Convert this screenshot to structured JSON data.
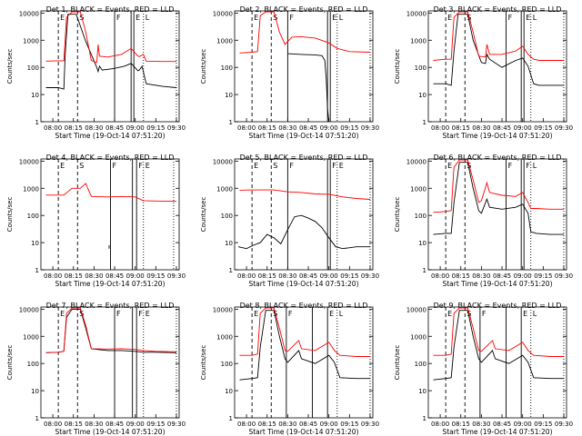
{
  "figure": {
    "ylabel": "Counts/sec",
    "xlabel": "Start Time (19-Oct-14 07:51:20)",
    "x_ticks": [
      "08:00",
      "08:15",
      "08:30",
      "08:45",
      "09:00",
      "09:15",
      "09:30"
    ],
    "y_ticks": [
      "1",
      "10",
      "100",
      "1000",
      "10000"
    ]
  },
  "chart_data": [
    {
      "type": "line",
      "title": "Det 1, BLACK = Events, RED = LLD",
      "xlim": [
        "07:51:20",
        "09:32"
      ],
      "ylim": [
        1,
        12000
      ],
      "yscale": "log",
      "series": [
        {
          "name": "Events",
          "color": "#000000",
          "x": [
            "07:55",
            "08:04",
            "08:08",
            "08:09",
            "08:11",
            "08:17",
            "08:24",
            "08:32",
            "08:33",
            "08:34",
            "08:36",
            "08:44",
            "08:52",
            "08:57",
            "09:02",
            "09:03",
            "09:05",
            "09:08",
            "09:20",
            "09:30"
          ],
          "y": [
            18,
            18,
            16,
            300,
            9000,
            9000,
            900,
            100,
            70,
            110,
            80,
            90,
            110,
            140,
            75,
            80,
            110,
            25,
            20,
            18
          ]
        },
        {
          "name": "LLD",
          "color": "#ff0000",
          "x": [
            "07:55",
            "08:04",
            "08:08",
            "08:10",
            "08:14",
            "08:20",
            "08:24",
            "08:28",
            "08:32",
            "08:33",
            "08:34",
            "08:40",
            "08:50",
            "08:57",
            "09:02",
            "09:03",
            "09:06",
            "09:08",
            "09:20",
            "09:30"
          ],
          "y": [
            170,
            175,
            175,
            7000,
            11000,
            11000,
            2000,
            180,
            150,
            700,
            260,
            240,
            300,
            500,
            260,
            250,
            300,
            170,
            165,
            165
          ]
        }
      ],
      "lines": {
        "dashed": [
          "08:04",
          "08:18"
        ],
        "solid": [
          "08:45",
          "08:57",
          "08:59"
        ],
        "dotted": [
          "09:06",
          "09:30"
        ]
      },
      "flags": [
        "E",
        "S",
        "F",
        "E",
        "L"
      ]
    },
    {
      "type": "line",
      "title": "Det 2, BLACK = Events, RED = LLD",
      "xlim": [
        "07:51:20",
        "09:32"
      ],
      "ylim": [
        1,
        12000
      ],
      "yscale": "log",
      "series": [
        {
          "name": "Events",
          "color": "#000000",
          "x": [
            "08:30",
            "08:40",
            "08:50",
            "08:55",
            "08:57",
            "08:58",
            "08:59",
            "09:00"
          ],
          "y": [
            320,
            300,
            290,
            270,
            180,
            40,
            3,
            1
          ]
        },
        {
          "name": "LLD",
          "color": "#ff0000",
          "x": [
            "07:55",
            "08:04",
            "08:08",
            "08:10",
            "08:14",
            "08:20",
            "08:24",
            "08:28",
            "08:33",
            "08:40",
            "08:50",
            "09:00",
            "09:06",
            "09:15",
            "09:30"
          ],
          "y": [
            340,
            360,
            380,
            8000,
            11000,
            11000,
            2000,
            700,
            1300,
            1350,
            1200,
            800,
            500,
            380,
            360
          ]
        }
      ],
      "lines": {
        "dashed": [
          "08:04",
          "08:18"
        ],
        "solid": [
          "08:30",
          "08:59",
          "09:01"
        ],
        "dotted": [
          "09:06",
          "09:30"
        ]
      },
      "flags": [
        "E",
        "S",
        "F",
        "E",
        "L"
      ]
    },
    {
      "type": "line",
      "title": "Det 3, BLACK = Events, RED = LLD",
      "xlim": [
        "07:51:20",
        "09:32"
      ],
      "ylim": [
        1,
        12000
      ],
      "yscale": "log",
      "series": [
        {
          "name": "Events",
          "color": "#000000",
          "x": [
            "07:55",
            "08:04",
            "08:08",
            "08:10",
            "08:13",
            "08:20",
            "08:24",
            "08:30",
            "08:33",
            "08:34",
            "08:36",
            "08:45",
            "08:55",
            "09:00",
            "09:04",
            "09:08",
            "09:12",
            "09:20",
            "09:30"
          ],
          "y": [
            25,
            25,
            22,
            400,
            9000,
            9000,
            1000,
            150,
            140,
            300,
            200,
            100,
            180,
            220,
            110,
            25,
            22,
            22,
            22
          ]
        },
        {
          "name": "LLD",
          "color": "#ff0000",
          "x": [
            "07:55",
            "08:04",
            "08:08",
            "08:10",
            "08:14",
            "08:20",
            "08:24",
            "08:28",
            "08:33",
            "08:34",
            "08:36",
            "08:45",
            "08:55",
            "09:00",
            "09:04",
            "09:08",
            "09:12",
            "09:20",
            "09:30"
          ],
          "y": [
            180,
            200,
            200,
            7000,
            11000,
            11000,
            2000,
            260,
            240,
            700,
            300,
            300,
            400,
            600,
            300,
            200,
            180,
            180,
            180
          ]
        }
      ],
      "lines": {
        "dashed": [
          "08:04",
          "08:18"
        ],
        "solid": [
          "08:48",
          "08:59",
          "09:01"
        ],
        "dotted": [
          "09:06",
          "09:30"
        ]
      },
      "flags": [
        "E",
        "S",
        "F",
        "E",
        "L"
      ]
    },
    {
      "type": "line",
      "title": "Det 4, BLACK = Events, RED = LLD",
      "xlim": [
        "07:51:20",
        "09:32"
      ],
      "ylim": [
        1,
        12000
      ],
      "yscale": "log",
      "series": [
        {
          "name": "Events",
          "color": "#000000",
          "x": [
            "08:41",
            "08:41"
          ],
          "y": [
            8,
            6
          ]
        },
        {
          "name": "LLD",
          "color": "#ff0000",
          "x": [
            "07:55",
            "08:04",
            "08:08",
            "08:14",
            "08:20",
            "08:24",
            "08:28",
            "08:40",
            "08:50",
            "09:00",
            "09:06",
            "09:15",
            "09:30"
          ],
          "y": [
            560,
            560,
            560,
            1000,
            1000,
            1500,
            500,
            480,
            500,
            480,
            350,
            340,
            330
          ]
        }
      ],
      "lines": {
        "dashed": [
          "08:04",
          "08:18"
        ],
        "solid": [
          "08:42",
          "08:58",
          "09:01"
        ],
        "dotted": [
          "09:06",
          "09:28"
        ]
      },
      "flags": [
        "E",
        "S",
        "F",
        "F",
        "E"
      ]
    },
    {
      "type": "line",
      "title": "Det 5, BLACK = Events, RED = LLD",
      "xlim": [
        "07:51:20",
        "09:32"
      ],
      "ylim": [
        1,
        12000
      ],
      "yscale": "log",
      "series": [
        {
          "name": "Events",
          "color": "#000000",
          "x": [
            "07:54",
            "08:00",
            "08:05",
            "08:10",
            "08:15",
            "08:20",
            "08:25",
            "08:30",
            "08:35",
            "08:40",
            "08:45",
            "08:50",
            "08:55",
            "09:00",
            "09:05",
            "09:10",
            "09:20",
            "09:30"
          ],
          "y": [
            7,
            6,
            8,
            10,
            20,
            15,
            9,
            30,
            90,
            100,
            80,
            60,
            35,
            15,
            7,
            6,
            7,
            7
          ]
        },
        {
          "name": "LLD",
          "color": "#ff0000",
          "x": [
            "07:55",
            "08:00",
            "08:10",
            "08:20",
            "08:30",
            "08:40",
            "08:50",
            "09:00",
            "09:10",
            "09:20",
            "09:30"
          ],
          "y": [
            850,
            860,
            870,
            870,
            740,
            700,
            620,
            600,
            480,
            420,
            390
          ]
        }
      ],
      "lines": {
        "dashed": [
          "08:04",
          "08:18"
        ],
        "solid": [
          "08:30",
          "08:59",
          "09:01"
        ],
        "dotted": [
          "09:06",
          "09:30"
        ]
      },
      "flags": [
        "E",
        "S",
        "F",
        "F",
        "E"
      ]
    },
    {
      "type": "line",
      "title": "Det 6, BLACK = Events, RED = LLD",
      "xlim": [
        "07:51:20",
        "09:32"
      ],
      "ylim": [
        1,
        12000
      ],
      "yscale": "log",
      "series": [
        {
          "name": "Events",
          "color": "#000000",
          "x": [
            "07:55",
            "08:04",
            "08:08",
            "08:10",
            "08:14",
            "08:20",
            "08:24",
            "08:28",
            "08:30",
            "08:34",
            "08:36",
            "08:45",
            "08:55",
            "09:00",
            "09:04",
            "09:06",
            "09:10",
            "09:20",
            "09:30"
          ],
          "y": [
            20,
            22,
            22,
            300,
            9000,
            9000,
            1000,
            150,
            120,
            400,
            200,
            170,
            200,
            260,
            120,
            25,
            22,
            20,
            20
          ]
        },
        {
          "name": "LLD",
          "color": "#ff0000",
          "x": [
            "07:55",
            "08:04",
            "08:08",
            "08:10",
            "08:14",
            "08:20",
            "08:24",
            "08:28",
            "08:30",
            "08:34",
            "08:36",
            "08:45",
            "08:55",
            "09:00",
            "09:04",
            "09:06",
            "09:10",
            "09:20",
            "09:30"
          ],
          "y": [
            130,
            140,
            150,
            6000,
            11000,
            11000,
            2000,
            300,
            350,
            1600,
            700,
            550,
            500,
            700,
            300,
            180,
            180,
            170,
            170
          ]
        }
      ],
      "lines": {
        "dashed": [
          "08:04",
          "08:18"
        ],
        "solid": [
          "08:48",
          "08:59",
          "09:01"
        ],
        "dotted": [
          "09:06",
          "09:30"
        ]
      },
      "flags": [
        "E",
        "S",
        "F",
        "F",
        "L"
      ]
    },
    {
      "type": "line",
      "title": "Det 7, BLACK = Events, RED = LLD",
      "xlim": [
        "07:51:20",
        "09:32"
      ],
      "ylim": [
        1,
        12000
      ],
      "yscale": "log",
      "series": [
        {
          "name": "Events",
          "color": "#000000",
          "x": [
            "07:55",
            "08:04",
            "08:08",
            "08:10",
            "08:14",
            "08:20",
            "08:24",
            "08:28",
            "08:40",
            "08:50",
            "09:00",
            "09:06",
            "09:15",
            "09:30"
          ],
          "y": [
            250,
            260,
            280,
            5000,
            10000,
            10000,
            2000,
            350,
            300,
            300,
            280,
            260,
            260,
            250
          ]
        },
        {
          "name": "LLD",
          "color": "#ff0000",
          "x": [
            "07:55",
            "08:04",
            "08:08",
            "08:10",
            "08:14",
            "08:20",
            "08:24",
            "08:28",
            "08:40",
            "08:50",
            "09:00",
            "09:06",
            "09:15",
            "09:30"
          ],
          "y": [
            250,
            260,
            280,
            7000,
            11000,
            11000,
            2500,
            350,
            340,
            350,
            330,
            300,
            280,
            270
          ]
        }
      ],
      "lines": {
        "dashed": [
          "08:04",
          "08:18"
        ],
        "solid": [
          "08:45",
          "08:58",
          "09:01"
        ],
        "dotted": [
          "09:06",
          "09:30"
        ]
      },
      "flags": [
        "E",
        "S",
        "F",
        "F",
        "E"
      ]
    },
    {
      "type": "line",
      "title": "Det 8, BLACK = Events, RED = LLD",
      "xlim": [
        "07:51:20",
        "09:32"
      ],
      "ylim": [
        1,
        12000
      ],
      "yscale": "log",
      "series": [
        {
          "name": "Events",
          "color": "#000000",
          "x": [
            "07:55",
            "08:04",
            "08:08",
            "08:10",
            "08:14",
            "08:20",
            "08:24",
            "08:28",
            "08:30",
            "08:38",
            "08:40",
            "08:50",
            "09:00",
            "09:04",
            "09:08",
            "09:20",
            "09:30"
          ],
          "y": [
            25,
            28,
            30,
            400,
            9000,
            9000,
            1000,
            150,
            110,
            300,
            150,
            100,
            200,
            110,
            30,
            28,
            28
          ]
        },
        {
          "name": "LLD",
          "color": "#ff0000",
          "x": [
            "07:55",
            "08:04",
            "08:08",
            "08:10",
            "08:14",
            "08:20",
            "08:24",
            "08:28",
            "08:30",
            "08:38",
            "08:40",
            "08:50",
            "09:00",
            "09:04",
            "09:08",
            "09:20",
            "09:30"
          ],
          "y": [
            200,
            200,
            220,
            7000,
            11000,
            11000,
            2000,
            300,
            280,
            700,
            350,
            300,
            600,
            300,
            200,
            180,
            180
          ]
        }
      ],
      "lines": {
        "dashed": [
          "08:04",
          "08:18"
        ],
        "solid": [
          "08:29",
          "08:48",
          "08:59"
        ],
        "dotted": [
          "09:06",
          "09:30"
        ]
      },
      "flags": [
        "E",
        "S",
        "F",
        "E",
        "L"
      ]
    },
    {
      "type": "line",
      "title": "Det 9, BLACK = Events, RED = LLD",
      "xlim": [
        "07:51:20",
        "09:32"
      ],
      "ylim": [
        1,
        12000
      ],
      "yscale": "log",
      "series": [
        {
          "name": "Events",
          "color": "#000000",
          "x": [
            "07:55",
            "08:04",
            "08:08",
            "08:10",
            "08:14",
            "08:20",
            "08:24",
            "08:28",
            "08:30",
            "08:38",
            "08:40",
            "08:50",
            "09:00",
            "09:04",
            "09:08",
            "09:20",
            "09:30"
          ],
          "y": [
            25,
            28,
            30,
            400,
            9000,
            9000,
            1000,
            150,
            110,
            300,
            150,
            100,
            200,
            110,
            30,
            28,
            28
          ]
        },
        {
          "name": "LLD",
          "color": "#ff0000",
          "x": [
            "07:55",
            "08:04",
            "08:08",
            "08:10",
            "08:14",
            "08:20",
            "08:24",
            "08:28",
            "08:30",
            "08:38",
            "08:40",
            "08:50",
            "09:00",
            "09:04",
            "09:08",
            "09:20",
            "09:30"
          ],
          "y": [
            200,
            200,
            220,
            7000,
            11000,
            11000,
            2000,
            300,
            280,
            700,
            350,
            300,
            600,
            300,
            200,
            180,
            180
          ]
        }
      ],
      "lines": {
        "dashed": [
          "08:04",
          "08:18"
        ],
        "solid": [
          "08:29",
          "08:48",
          "08:59"
        ],
        "dotted": [
          "09:06",
          "09:30"
        ]
      },
      "flags": [
        "E",
        "S",
        "F",
        "E",
        "L"
      ]
    }
  ]
}
